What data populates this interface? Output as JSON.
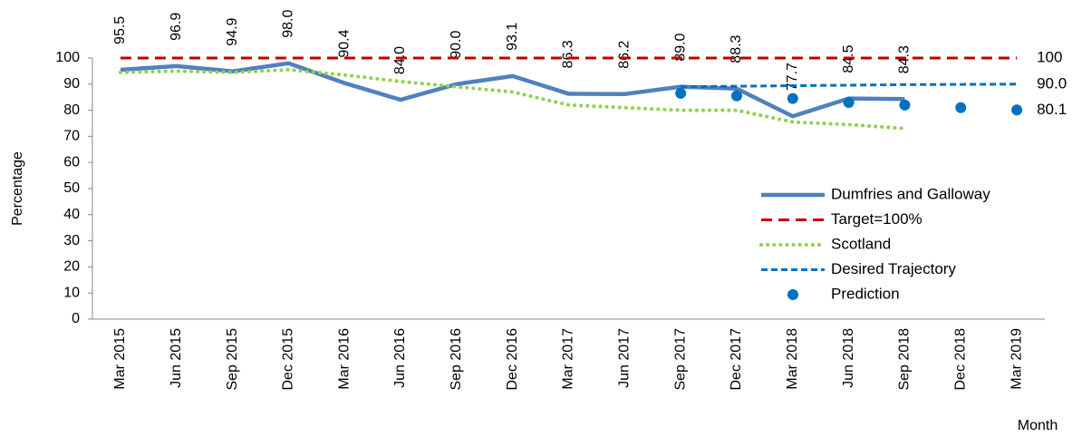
{
  "chart_data": {
    "type": "line",
    "categories": [
      "Mar 2015",
      "Jun 2015",
      "Sep 2015",
      "Dec 2015",
      "Mar 2016",
      "Jun 2016",
      "Sep 2016",
      "Dec 2016",
      "Mar 2017",
      "Jun 2017",
      "Sep 2017",
      "Dec 2017",
      "Mar 2018",
      "Jun 2018",
      "Sep 2018",
      "Dec 2018",
      "Mar 2019"
    ],
    "y_label": "Percentage",
    "x_label": "Month",
    "ylim": [
      0,
      100
    ],
    "yticks": [
      0,
      10,
      20,
      30,
      40,
      50,
      60,
      70,
      80,
      90,
      100
    ],
    "grid": false,
    "legend": "right",
    "series": [
      {
        "name": "Dumfries and Galloway",
        "color": "#4f81bd",
        "style": "solid",
        "values": [
          95.5,
          96.9,
          94.9,
          98.0,
          90.4,
          84.0,
          90.0,
          93.1,
          86.3,
          86.2,
          89.0,
          88.3,
          77.7,
          84.5,
          84.3,
          null,
          null
        ],
        "value_labels": [
          "95.5",
          "96.9",
          "94.9",
          "98.0",
          "90.4",
          "84.0",
          "90.0",
          "93.1",
          "86.3",
          "86.2",
          "89.0",
          "88.3",
          "77.7",
          "84.5",
          "84.3",
          null,
          null
        ]
      },
      {
        "name": "Target=100%",
        "color": "#c00000",
        "style": "dashed",
        "values": [
          100,
          100,
          100,
          100,
          100,
          100,
          100,
          100,
          100,
          100,
          100,
          100,
          100,
          100,
          100,
          100,
          100
        ],
        "value_labels": [
          null,
          null,
          null,
          null,
          null,
          null,
          null,
          null,
          null,
          null,
          null,
          null,
          null,
          null,
          null,
          null,
          "100"
        ]
      },
      {
        "name": "Scotland",
        "color": "#92d050",
        "style": "dotted",
        "values": [
          94.5,
          95,
          94.5,
          95.5,
          93.5,
          91,
          89,
          87,
          82,
          81,
          80,
          80,
          75.5,
          74.5,
          73,
          null,
          null
        ]
      },
      {
        "name": "Desired Trajectory",
        "color": "#0070c0",
        "style": "dash",
        "values": [
          null,
          null,
          null,
          null,
          null,
          null,
          null,
          null,
          null,
          null,
          89,
          89.2,
          89.4,
          89.6,
          89.8,
          89.9,
          90.0
        ],
        "value_labels": [
          null,
          null,
          null,
          null,
          null,
          null,
          null,
          null,
          null,
          null,
          null,
          null,
          null,
          null,
          null,
          null,
          "90.0"
        ]
      },
      {
        "name": "Prediction",
        "color": "#0070c0",
        "style": "marker",
        "values": [
          null,
          null,
          null,
          null,
          null,
          null,
          null,
          null,
          null,
          null,
          86.5,
          85.5,
          84.5,
          83,
          82,
          81,
          80.1
        ],
        "value_labels": [
          null,
          null,
          null,
          null,
          null,
          null,
          null,
          null,
          null,
          null,
          null,
          null,
          null,
          null,
          null,
          null,
          "80.1"
        ]
      }
    ]
  }
}
